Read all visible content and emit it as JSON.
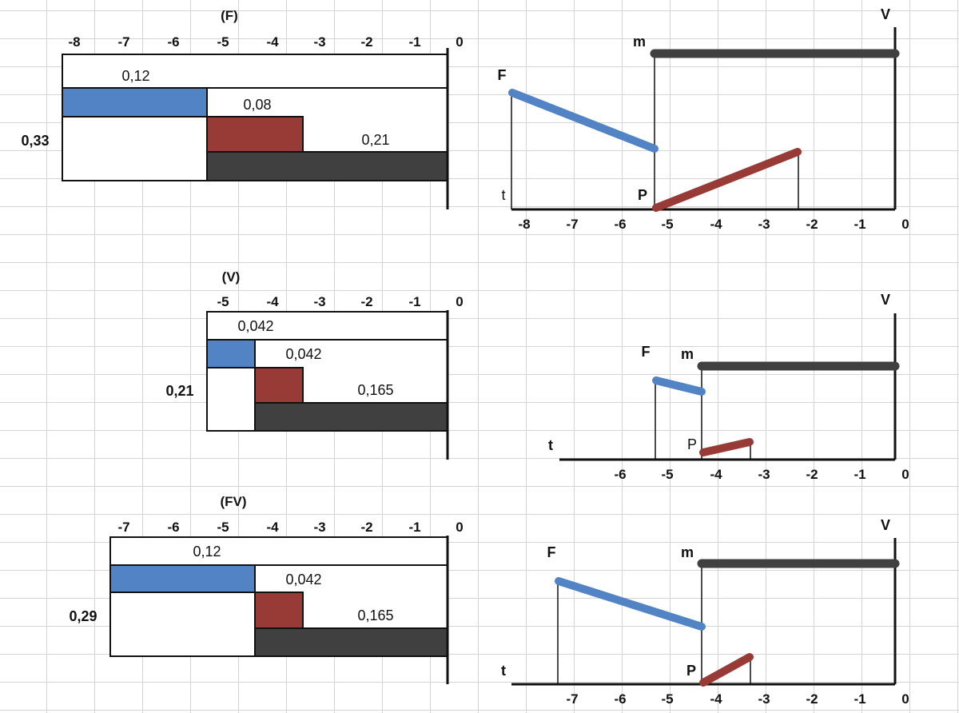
{
  "panels": [
    {
      "title": "(F)",
      "bar": {
        "ticks": [
          "-8",
          "-7",
          "-6",
          "-5",
          "-4",
          "-3",
          "-2",
          "-1",
          "0"
        ],
        "top_value": "0,12",
        "mid_value": "0,08",
        "low_value": "0,21",
        "total": "0,33"
      },
      "time": {
        "label_v": "V",
        "label_m": "m",
        "label_f": "F",
        "label_p": "P",
        "label_t": "t",
        "ticks": [
          "-8",
          "-7",
          "-6",
          "-5",
          "-4",
          "-3",
          "-2",
          "-1",
          "0"
        ]
      }
    },
    {
      "title": "(V)",
      "bar": {
        "ticks": [
          "-5",
          "-4",
          "-3",
          "-2",
          "-1",
          "0"
        ],
        "top_value": "0,042",
        "mid_value": "0,042",
        "low_value": "0,165",
        "total": "0,21"
      },
      "time": {
        "label_v": "V",
        "label_m": "m",
        "label_f": "F",
        "label_p": "P",
        "label_t": "t",
        "ticks": [
          "-6",
          "-5",
          "-4",
          "-3",
          "-2",
          "-1",
          "0"
        ]
      }
    },
    {
      "title": "(FV)",
      "bar": {
        "ticks": [
          "-7",
          "-6",
          "-5",
          "-4",
          "-3",
          "-2",
          "-1",
          "0"
        ],
        "top_value": "0,12",
        "mid_value": "0,042",
        "low_value": "0,165",
        "total": "0,29"
      },
      "time": {
        "label_v": "V",
        "label_m": "m",
        "label_f": "F",
        "label_p": "P",
        "label_t": "t",
        "ticks": [
          "-7",
          "-6",
          "-5",
          "-4",
          "-3",
          "-2",
          "-1",
          "0"
        ]
      }
    }
  ],
  "colors": {
    "blue": "#5283c4",
    "red": "#983a36",
    "dark": "#404040",
    "line": "#111111"
  }
}
